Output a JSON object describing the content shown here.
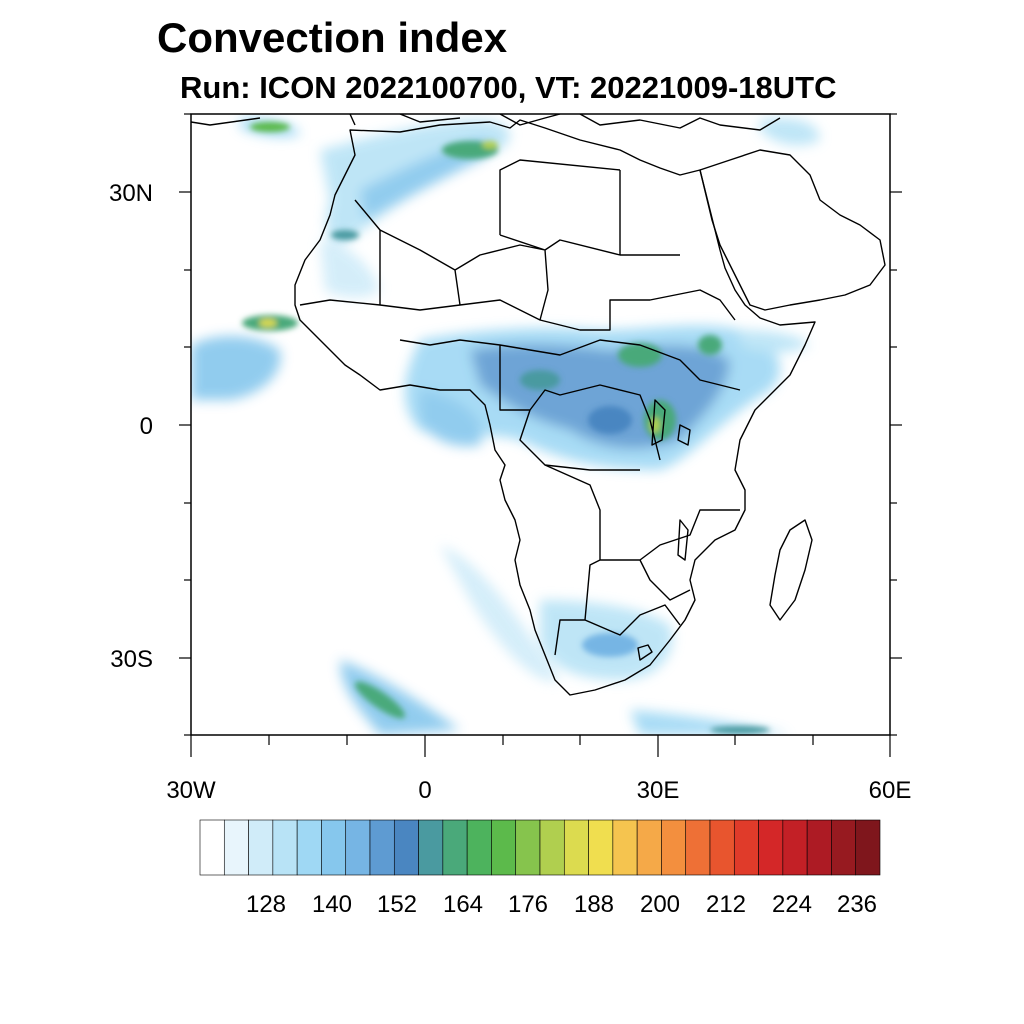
{
  "title": "Convection index",
  "subtitle": "Run: ICON 2022100700,  VT: 20221009-18UTC",
  "y_axis_labels": [
    "30N",
    "0",
    "30S"
  ],
  "x_axis_labels": [
    "30W",
    "0",
    "30E",
    "60E"
  ],
  "colorbar": {
    "colors": [
      "#ffffff",
      "#e8f5fc",
      "#d0ecf9",
      "#b8e3f6",
      "#9fd8f4",
      "#86c7ed",
      "#76b5e4",
      "#5e9bd2",
      "#4a86c1",
      "#4a9aa0",
      "#4aa97a",
      "#4db35d",
      "#5cba4b",
      "#86c44d",
      "#b0cf4f",
      "#dcdb4f",
      "#f0de4f",
      "#f5c44f",
      "#f5a948",
      "#f38f3e",
      "#ee7036",
      "#e8552e",
      "#e03b2a",
      "#d42728",
      "#c32026",
      "#ad1b24",
      "#971a20",
      "#7f161c"
    ],
    "labels": [
      "128",
      "140",
      "152",
      "164",
      "176",
      "188",
      "200",
      "212",
      "224",
      "236"
    ]
  }
}
